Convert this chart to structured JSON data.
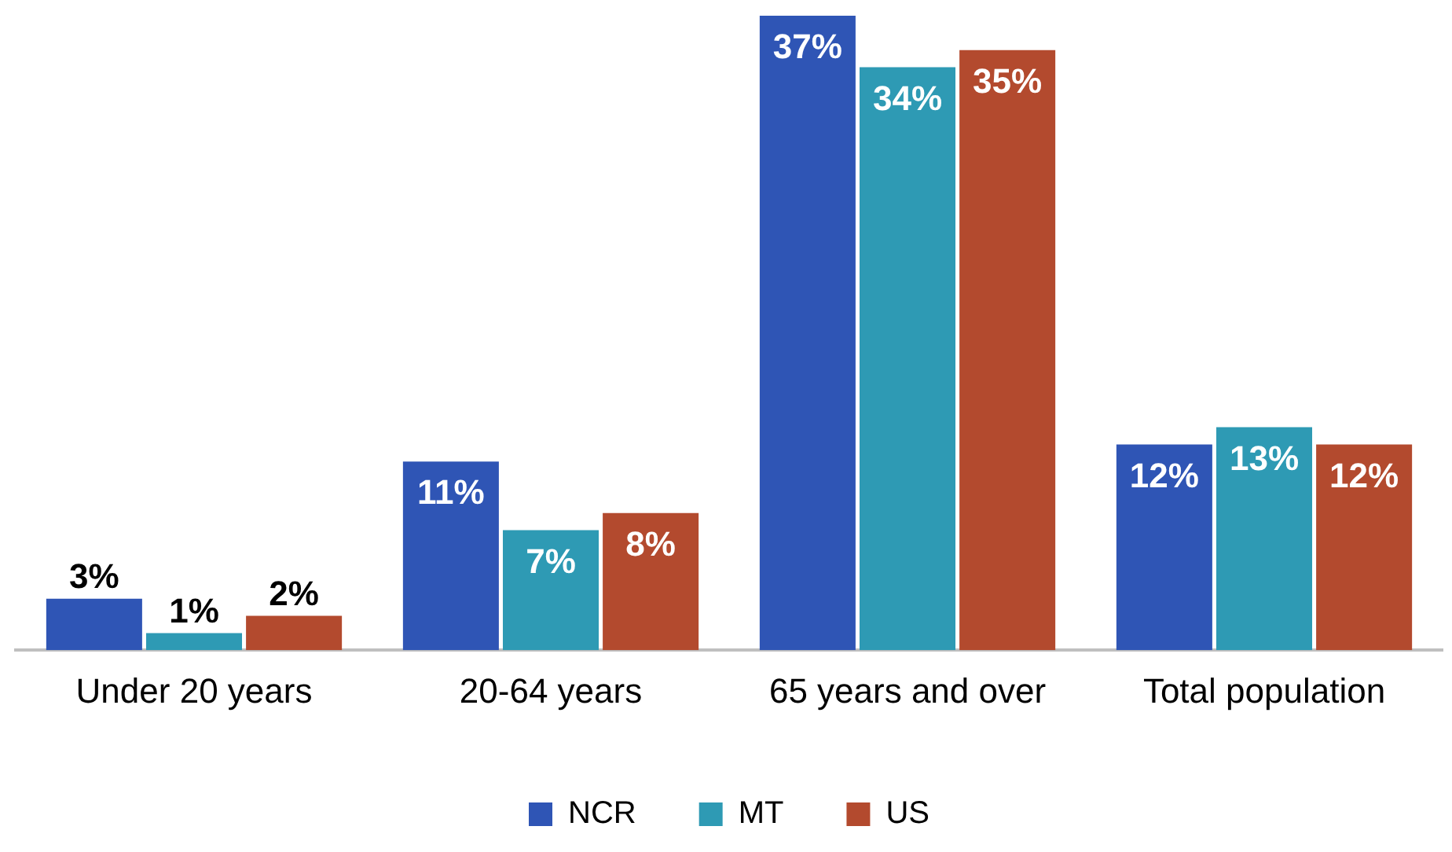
{
  "chart_data": {
    "type": "bar",
    "categories": [
      "Under 20 years",
      "20-64 years",
      "65 years and over",
      "Total population"
    ],
    "series": [
      {
        "name": "NCR",
        "color": "#2f55b5",
        "values": [
          3,
          11,
          37,
          12
        ],
        "value_labels": [
          "3%",
          "11%",
          "37%",
          "12%"
        ]
      },
      {
        "name": "MT",
        "color": "#2e9ab4",
        "values": [
          1,
          7,
          34,
          13
        ],
        "value_labels": [
          "1%",
          "7%",
          "34%",
          "13%"
        ]
      },
      {
        "name": "US",
        "color": "#b34a2e",
        "values": [
          2,
          8,
          35,
          12
        ],
        "value_labels": [
          "2%",
          "8%",
          "35%",
          "12%"
        ]
      }
    ],
    "legend": "bottom",
    "grid": false
  }
}
